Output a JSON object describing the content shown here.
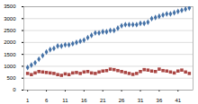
{
  "chart_data": {
    "type": "scatter",
    "x": [
      1,
      2,
      3,
      4,
      5,
      6,
      7,
      8,
      9,
      10,
      11,
      12,
      13,
      14,
      15,
      16,
      17,
      18,
      19,
      20,
      21,
      22,
      23,
      24,
      25,
      26,
      27,
      28,
      29,
      30,
      31,
      32,
      33,
      34,
      35,
      36,
      37,
      38,
      39,
      40,
      41,
      42,
      43,
      44
    ],
    "series": [
      {
        "color": "#4572a7",
        "marker": "diamond",
        "values": [
          950,
          1050,
          1150,
          1300,
          1450,
          1600,
          1700,
          1750,
          1850,
          1850,
          1900,
          1900,
          1950,
          2000,
          2050,
          2100,
          2200,
          2300,
          2400,
          2400,
          2450,
          2450,
          2500,
          2500,
          2600,
          2700,
          2750,
          2750,
          2750,
          2750,
          2800,
          2800,
          2850,
          3000,
          3050,
          3100,
          3150,
          3200,
          3200,
          3250,
          3300,
          3350,
          3400,
          3450
        ]
      },
      {
        "color": "#aa4643",
        "marker": "square",
        "values": [
          700,
          650,
          720,
          780,
          760,
          740,
          720,
          700,
          650,
          620,
          680,
          650,
          720,
          740,
          700,
          760,
          780,
          720,
          700,
          760,
          800,
          820,
          880,
          860,
          820,
          780,
          740,
          700,
          660,
          700,
          780,
          860,
          840,
          800,
          780,
          880,
          820,
          800,
          760,
          720,
          800,
          840,
          760,
          700
        ]
      }
    ],
    "xlim": [
      0,
      45
    ],
    "xticks": [
      1,
      6,
      11,
      16,
      21,
      26,
      31,
      36,
      41
    ],
    "ylim": [
      0,
      3500
    ],
    "yticks": [
      0,
      500,
      1000,
      1500,
      2000,
      2500,
      3000,
      3500
    ],
    "grid": true
  }
}
